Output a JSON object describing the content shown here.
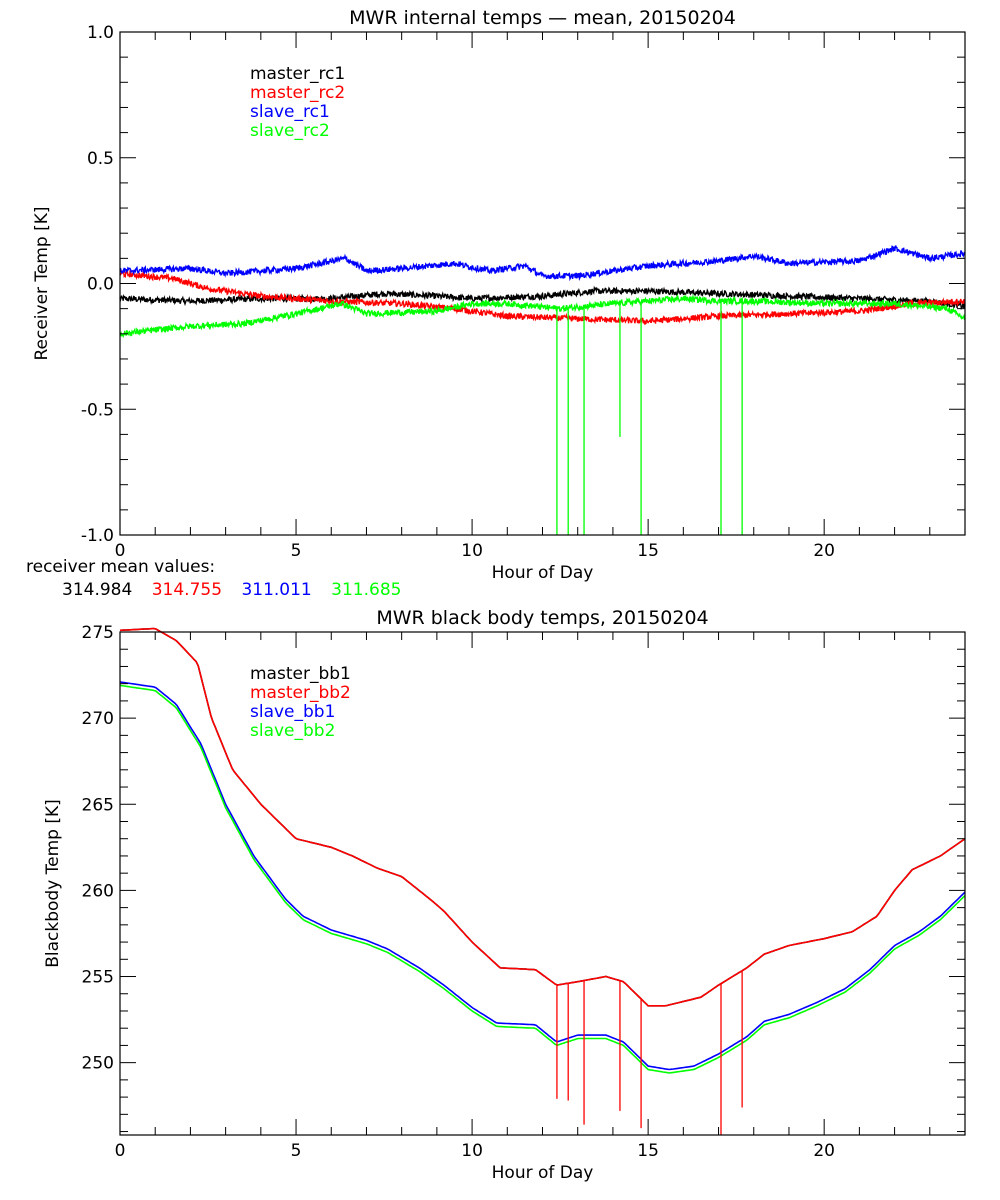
{
  "chart_data": [
    {
      "type": "line",
      "title": "MWR internal temps — mean, 20150204",
      "xlabel": "Hour of Day",
      "ylabel": "Receiver Temp [K]",
      "xlim": [
        0,
        24
      ],
      "ylim": [
        -1.0,
        1.0
      ],
      "xticks": [
        0,
        5,
        10,
        15,
        20
      ],
      "xtick_labels": [
        "0",
        "5",
        "10",
        "15",
        "20"
      ],
      "yticks": [
        -1.0,
        -0.5,
        0.0,
        0.5,
        1.0
      ],
      "ytick_labels": [
        "-1.0",
        "-0.5",
        "0.0",
        "0.5",
        "1.0"
      ],
      "x_minor_step": 1,
      "y_minor_step": 0.1,
      "legend_position": "top-left",
      "noise_amplitude": 0.012,
      "series": [
        {
          "name": "master_rc1",
          "color": "#000000",
          "x": [
            0,
            2,
            4,
            6,
            7.5,
            9,
            10,
            12,
            13.5,
            15,
            17,
            19,
            21,
            23,
            24
          ],
          "y": [
            -0.06,
            -0.07,
            -0.06,
            -0.06,
            -0.04,
            -0.05,
            -0.06,
            -0.05,
            -0.03,
            -0.03,
            -0.04,
            -0.05,
            -0.06,
            -0.07,
            -0.09
          ]
        },
        {
          "name": "master_rc2",
          "color": "#ff0000",
          "x": [
            0,
            1.5,
            2.5,
            4,
            6,
            8,
            9.5,
            11,
            13,
            15,
            17,
            19,
            21,
            22.5,
            24
          ],
          "y": [
            0.04,
            0.02,
            -0.02,
            -0.05,
            -0.07,
            -0.08,
            -0.1,
            -0.13,
            -0.14,
            -0.15,
            -0.13,
            -0.12,
            -0.11,
            -0.08,
            -0.07
          ]
        },
        {
          "name": "slave_rc1",
          "color": "#0000ff",
          "x": [
            0,
            2,
            3,
            5,
            6.4,
            7,
            8,
            9.5,
            10.5,
            11.5,
            12,
            13,
            14,
            15,
            17,
            18,
            19,
            21,
            22,
            23,
            24
          ],
          "y": [
            0.05,
            0.06,
            0.04,
            0.06,
            0.1,
            0.05,
            0.06,
            0.08,
            0.05,
            0.07,
            0.03,
            0.03,
            0.05,
            0.07,
            0.09,
            0.11,
            0.08,
            0.09,
            0.14,
            0.1,
            0.12
          ]
        },
        {
          "name": "slave_rc2",
          "color": "#00ff00",
          "x": [
            0,
            2,
            3.5,
            5,
            6.3,
            7,
            9,
            10,
            11,
            12.5,
            14,
            16,
            17,
            18,
            20,
            22,
            23.5,
            24
          ],
          "y": [
            -0.2,
            -0.17,
            -0.16,
            -0.12,
            -0.08,
            -0.12,
            -0.11,
            -0.08,
            -0.08,
            -0.1,
            -0.08,
            -0.06,
            -0.07,
            -0.07,
            -0.08,
            -0.08,
            -0.1,
            -0.14
          ]
        }
      ],
      "spikes": [
        {
          "x": 12.41,
          "y": -1.0,
          "color": "#00ff00"
        },
        {
          "x": 12.73,
          "y": -1.0,
          "color": "#00ff00"
        },
        {
          "x": 13.18,
          "y": -1.0,
          "color": "#00ff00"
        },
        {
          "x": 14.2,
          "y": -0.61,
          "color": "#00ff00"
        },
        {
          "x": 14.8,
          "y": -1.0,
          "color": "#00ff00"
        },
        {
          "x": 17.07,
          "y": -1.0,
          "color": "#00ff00"
        },
        {
          "x": 17.67,
          "y": -1.0,
          "color": "#00ff00"
        }
      ]
    },
    {
      "type": "line",
      "title": "MWR black body temps, 20150204",
      "xlabel": "Hour of Day",
      "ylabel": "Blackbody Temp [K]",
      "xlim": [
        0,
        24
      ],
      "ylim": [
        245.8,
        275
      ],
      "xticks": [
        0,
        5,
        10,
        15,
        20
      ],
      "xtick_labels": [
        "0",
        "5",
        "10",
        "15",
        "20"
      ],
      "yticks": [
        250,
        255,
        260,
        265,
        270,
        275
      ],
      "ytick_labels": [
        "250",
        "255",
        "260",
        "265",
        "270",
        "275"
      ],
      "x_minor_step": 1,
      "y_minor_step": 1,
      "legend_position": "top-left",
      "series": [
        {
          "name": "master_bb1",
          "color": "#000000",
          "x": [
            0,
            1,
            1.6,
            2.2,
            2.6,
            3.2,
            4,
            5,
            6,
            6.6,
            7.3,
            8,
            8.8,
            9.2,
            10,
            10.8,
            11.8,
            12.4,
            13,
            13.8,
            14.3,
            15,
            15.5,
            16.5,
            17,
            17.8,
            18.3,
            19,
            20,
            20.8,
            21.5,
            22,
            22.5,
            23.3,
            24
          ],
          "y": [
            275.1,
            275.2,
            274.5,
            273.2,
            270,
            267,
            265,
            263,
            262.5,
            262,
            261.3,
            260.8,
            259.5,
            258.8,
            257,
            255.5,
            255.4,
            254.5,
            254.7,
            255,
            254.7,
            253.3,
            253.3,
            253.8,
            254.5,
            255.5,
            256.3,
            256.8,
            257.2,
            257.6,
            258.5,
            260,
            261.2,
            262,
            263
          ]
        },
        {
          "name": "master_bb2",
          "color": "#ff0000",
          "x": [
            0,
            1,
            1.6,
            2.2,
            2.6,
            3.2,
            4,
            5,
            6,
            6.6,
            7.3,
            8,
            8.8,
            9.2,
            10,
            10.8,
            11.8,
            12.4,
            13,
            13.8,
            14.3,
            15,
            15.5,
            16.5,
            17,
            17.8,
            18.3,
            19,
            20,
            20.8,
            21.5,
            22,
            22.5,
            23.3,
            24
          ],
          "y": [
            275.1,
            275.2,
            274.5,
            273.2,
            270,
            267,
            265,
            263,
            262.5,
            262,
            261.3,
            260.8,
            259.5,
            258.8,
            257,
            255.5,
            255.4,
            254.5,
            254.7,
            255,
            254.7,
            253.3,
            253.3,
            253.8,
            254.5,
            255.5,
            256.3,
            256.8,
            257.2,
            257.6,
            258.5,
            260,
            261.2,
            262,
            263
          ]
        },
        {
          "name": "slave_bb1",
          "color": "#0000ff",
          "x": [
            0,
            1,
            1.6,
            2.3,
            3,
            3.8,
            4.7,
            5.2,
            6,
            7,
            7.6,
            8.5,
            9.2,
            10,
            10.7,
            11.8,
            12.4,
            13,
            13.8,
            14.3,
            15,
            15.6,
            16.3,
            17,
            17.8,
            18.3,
            19,
            19.8,
            20.6,
            21.3,
            22,
            22.7,
            23.3,
            24
          ],
          "y": [
            272.1,
            271.8,
            270.8,
            268.5,
            265,
            262,
            259.5,
            258.5,
            257.7,
            257.1,
            256.6,
            255.5,
            254.5,
            253.2,
            252.3,
            252.2,
            251.2,
            251.6,
            251.6,
            251.2,
            249.8,
            249.6,
            249.8,
            250.5,
            251.5,
            252.4,
            252.8,
            253.5,
            254.3,
            255.4,
            256.8,
            257.6,
            258.5,
            259.9
          ]
        },
        {
          "name": "slave_bb2",
          "color": "#00ff00",
          "x": [
            0,
            1,
            1.6,
            2.3,
            3,
            3.8,
            4.7,
            5.2,
            6,
            7,
            7.6,
            8.5,
            9.2,
            10,
            10.7,
            11.8,
            12.4,
            13,
            13.8,
            14.3,
            15,
            15.6,
            16.3,
            17,
            17.8,
            18.3,
            19,
            19.8,
            20.6,
            21.3,
            22,
            22.7,
            23.3,
            24
          ],
          "y": [
            271.9,
            271.6,
            270.6,
            268.3,
            264.8,
            261.8,
            259.3,
            258.3,
            257.5,
            256.9,
            256.4,
            255.3,
            254.3,
            253.0,
            252.1,
            252.0,
            251.0,
            251.4,
            251.4,
            251.0,
            249.6,
            249.4,
            249.6,
            250.3,
            251.3,
            252.2,
            252.6,
            253.3,
            254.1,
            255.2,
            256.6,
            257.4,
            258.3,
            259.7
          ]
        }
      ],
      "spikes": [
        {
          "x": 12.41,
          "y": 247.9,
          "color": "#ff0000"
        },
        {
          "x": 12.73,
          "y": 247.8,
          "color": "#ff0000"
        },
        {
          "x": 13.18,
          "y": 246.4,
          "color": "#ff0000"
        },
        {
          "x": 14.2,
          "y": 247.2,
          "color": "#ff0000"
        },
        {
          "x": 14.8,
          "y": 246.2,
          "color": "#ff0000"
        },
        {
          "x": 17.07,
          "y": 245.8,
          "color": "#ff0000"
        },
        {
          "x": 17.67,
          "y": 247.4,
          "color": "#ff0000"
        }
      ]
    }
  ],
  "receiver_mean": {
    "label": "receiver mean values:",
    "values": [
      {
        "text": "314.984",
        "color": "#000000"
      },
      {
        "text": "314.755",
        "color": "#ff0000"
      },
      {
        "text": "311.011",
        "color": "#0000ff"
      },
      {
        "text": "311.685",
        "color": "#00ff00"
      }
    ]
  }
}
